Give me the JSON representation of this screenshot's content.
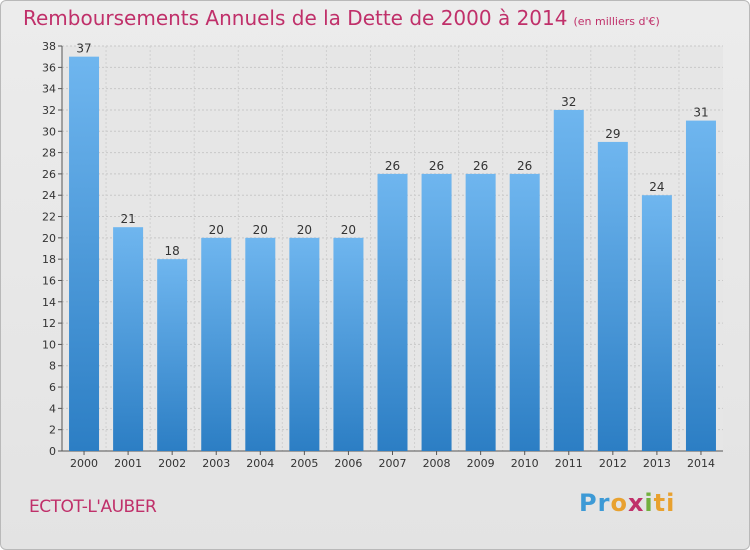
{
  "title": "Remboursements Annuels de la Dette de 2000 à 2014",
  "title_unit": "(en milliers d'€)",
  "commune": "ECTOT-L'AUBER",
  "logo_parts": [
    "Pr",
    "o",
    "x",
    "i",
    "ti"
  ],
  "colors": {
    "title": "#c0306a",
    "bar_light": "#6fb6ef",
    "bar_dark": "#2c7ec4"
  },
  "chart_data": {
    "type": "bar",
    "title": "Remboursements Annuels de la Dette de 2000 à 2014",
    "xlabel": "",
    "ylabel": "",
    "categories": [
      "2000",
      "2001",
      "2002",
      "2003",
      "2004",
      "2005",
      "2006",
      "2007",
      "2008",
      "2009",
      "2010",
      "2011",
      "2012",
      "2013",
      "2014"
    ],
    "values": [
      37,
      21,
      18,
      20,
      20,
      20,
      20,
      26,
      26,
      26,
      26,
      32,
      29,
      24,
      31
    ],
    "ylim": [
      0,
      38
    ],
    "yticks": [
      0,
      2,
      4,
      6,
      8,
      10,
      12,
      14,
      16,
      18,
      20,
      22,
      24,
      26,
      28,
      30,
      32,
      34,
      36,
      38
    ],
    "grid": true
  }
}
